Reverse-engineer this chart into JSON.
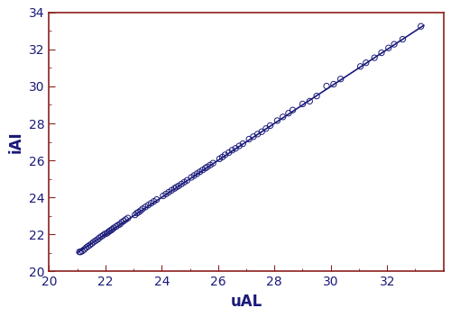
{
  "xlabel": "uAL",
  "ylabel": "iAI",
  "xlim": [
    20,
    34
  ],
  "ylim": [
    20,
    34
  ],
  "xticks": [
    20,
    22,
    24,
    26,
    28,
    30,
    32
  ],
  "yticks": [
    20,
    22,
    24,
    26,
    28,
    30,
    32,
    34
  ],
  "point_color": "#1a1a7a",
  "line_color": "#1a1a7a",
  "spine_color": "#8B2020",
  "marker_size": 4.5,
  "line_width": 1.2,
  "xlabel_fontsize": 12,
  "ylabel_fontsize": 12,
  "tick_fontsize": 10,
  "scatter_x": [
    21.08,
    21.12,
    21.18,
    21.25,
    21.32,
    21.38,
    21.45,
    21.52,
    21.58,
    21.65,
    21.72,
    21.78,
    21.85,
    21.92,
    21.98,
    22.05,
    22.1,
    22.15,
    22.2,
    22.25,
    22.3,
    22.38,
    22.45,
    22.52,
    22.58,
    22.65,
    22.72,
    22.8,
    23.05,
    23.12,
    23.18,
    23.25,
    23.32,
    23.42,
    23.52,
    23.62,
    23.72,
    23.82,
    24.05,
    24.15,
    24.25,
    24.35,
    24.45,
    24.52,
    24.6,
    24.7,
    24.8,
    24.9,
    25.05,
    25.15,
    25.25,
    25.35,
    25.45,
    25.55,
    25.62,
    25.72,
    25.82,
    26.05,
    26.15,
    26.25,
    26.38,
    26.5,
    26.62,
    26.75,
    26.88,
    27.1,
    27.25,
    27.4,
    27.55,
    27.7,
    27.85,
    28.1,
    28.3,
    28.5,
    28.65,
    29.0,
    29.25,
    29.5,
    29.85,
    30.1,
    30.35,
    31.05,
    31.25,
    31.55,
    31.8,
    32.05,
    32.25,
    32.55,
    33.2
  ],
  "scatter_y": [
    21.05,
    21.05,
    21.1,
    21.18,
    21.28,
    21.35,
    21.42,
    21.5,
    21.58,
    21.65,
    21.72,
    21.8,
    21.88,
    21.95,
    22.02,
    22.05,
    22.12,
    22.18,
    22.22,
    22.28,
    22.35,
    22.42,
    22.5,
    22.55,
    22.65,
    22.72,
    22.8,
    22.88,
    23.05,
    23.15,
    23.2,
    23.28,
    23.38,
    23.48,
    23.58,
    23.68,
    23.78,
    23.88,
    24.08,
    24.18,
    24.28,
    24.38,
    24.48,
    24.55,
    24.62,
    24.72,
    24.82,
    24.92,
    25.08,
    25.18,
    25.28,
    25.38,
    25.48,
    25.58,
    25.65,
    25.75,
    25.85,
    26.08,
    26.18,
    26.3,
    26.42,
    26.55,
    26.65,
    26.78,
    26.9,
    27.15,
    27.28,
    27.42,
    27.55,
    27.72,
    27.88,
    28.15,
    28.35,
    28.55,
    28.72,
    29.05,
    29.2,
    29.48,
    30.02,
    30.12,
    30.4,
    31.08,
    31.28,
    31.55,
    31.82,
    32.08,
    32.28,
    32.55,
    33.25
  ],
  "fit_line_x": [
    21.0,
    33.3
  ],
  "fit_line_y": [
    21.0,
    33.3
  ]
}
